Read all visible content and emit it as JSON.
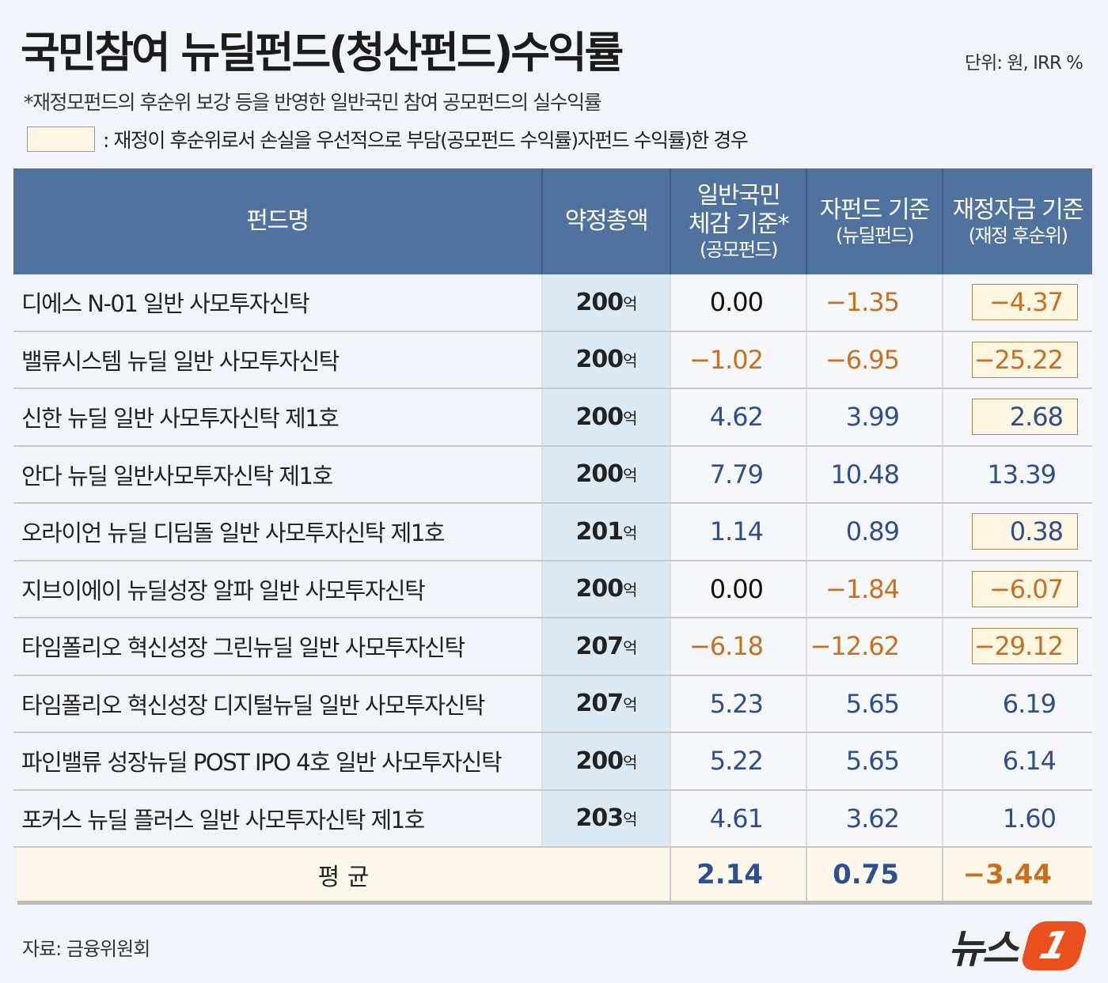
{
  "title": "국민참여 뉴딜펀드(청산펀드)수익률",
  "unit": "단위: 원, IRR %",
  "subtitle": "*재정모펀드의 후순위 보강 등을 반영한 일반국민 참여 공모펀드의 실수익률",
  "legend_text": ": 재정이 후순위로서 손실을 우선적으로 부담(공모펀드 수익률)자펀드 수익률)한 경우",
  "colors": {
    "header": "#50729e",
    "positive": "#2b4f8f",
    "negative": "#c8701e",
    "zero": "#111111",
    "highlight": "#fdf6e3"
  },
  "chart_data": {
    "type": "table",
    "headers": {
      "name": "펀드명",
      "amount": "약정총액",
      "col3_l1": "일반국민",
      "col3_l2": "체감 기준*",
      "col3_l3": "(공모펀드)",
      "col4_l1": "자펀드 기준",
      "col4_l2": "(뉴딜펀드)",
      "col5_l1": "재정자금 기준",
      "col5_l2": "(재정 후순위)"
    },
    "amount_unit": "억",
    "rows": [
      {
        "name": "디에스 N-01 일반 사모투자신탁",
        "amount": "200",
        "public": "0.00",
        "sub": "-1.35",
        "fiscal": "-4.37",
        "highlight": true
      },
      {
        "name": "밸류시스템 뉴딜 일반 사모투자신탁",
        "amount": "200",
        "public": "-1.02",
        "sub": "-6.95",
        "fiscal": "-25.22",
        "highlight": true
      },
      {
        "name": "신한 뉴딜 일반 사모투자신탁 제1호",
        "amount": "200",
        "public": "4.62",
        "sub": "3.99",
        "fiscal": "2.68",
        "highlight": true
      },
      {
        "name": "안다 뉴딜 일반사모투자신탁 제1호",
        "amount": "200",
        "public": "7.79",
        "sub": "10.48",
        "fiscal": "13.39",
        "highlight": false
      },
      {
        "name": "오라이언 뉴딜 디딤돌 일반 사모투자신탁 제1호",
        "amount": "201",
        "public": "1.14",
        "sub": "0.89",
        "fiscal": "0.38",
        "highlight": true
      },
      {
        "name": "지브이에이 뉴딜성장 알파 일반 사모투자신탁",
        "amount": "200",
        "public": "0.00",
        "sub": "-1.84",
        "fiscal": "-6.07",
        "highlight": true
      },
      {
        "name": "타임폴리오 혁신성장 그린뉴딜 일반 사모투자신탁",
        "amount": "207",
        "public": "-6.18",
        "sub": "-12.62",
        "fiscal": "-29.12",
        "highlight": true
      },
      {
        "name": "타임폴리오 혁신성장 디지털뉴딜 일반 사모투자신탁",
        "amount": "207",
        "public": "5.23",
        "sub": "5.65",
        "fiscal": "6.19",
        "highlight": false
      },
      {
        "name": "파인밸류 성장뉴딜 POST IPO 4호 일반 사모투자신탁",
        "amount": "200",
        "public": "5.22",
        "sub": "5.65",
        "fiscal": "6.14",
        "highlight": false
      },
      {
        "name": "포커스 뉴딜 플러스 일반 사모투자신탁 제1호",
        "amount": "203",
        "public": "4.61",
        "sub": "3.62",
        "fiscal": "1.60",
        "highlight": false
      }
    ],
    "average": {
      "label": "평 균",
      "public": "2.14",
      "sub": "0.75",
      "fiscal": "-3.44"
    }
  },
  "source": "자료: 금융위원회",
  "logo": {
    "text": "뉴스",
    "mark": "1"
  }
}
